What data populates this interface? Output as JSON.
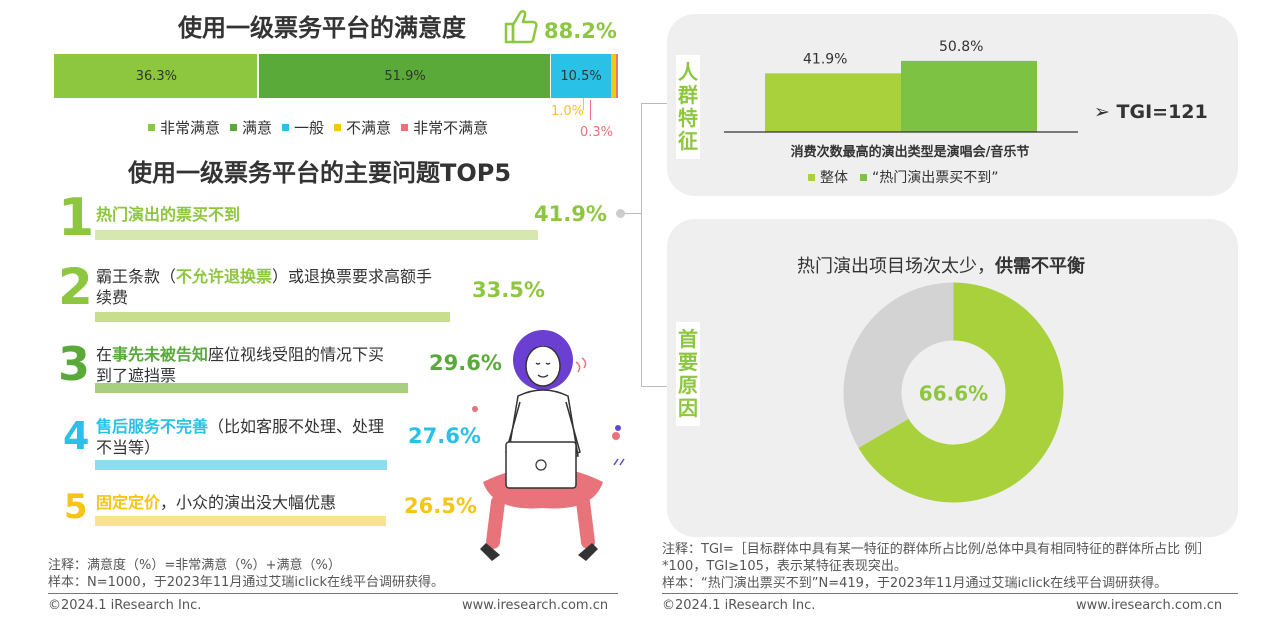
{
  "satisfaction": {
    "title": "使用一级票务平台的满意度",
    "total": "88.2%",
    "segments_text": {
      "very_satisfied": "36.3%",
      "satisfied": "51.9%",
      "neutral": "10.5%",
      "dissatisfied": "1.0%",
      "very_dissatisfied": "0.3%"
    },
    "legend": [
      "非常满意",
      "满意",
      "一般",
      "不满意",
      "非常不满意"
    ],
    "colors": [
      "#8dc63f",
      "#5aaa3a",
      "#29c1e6",
      "#f5c518",
      "#e8737a"
    ]
  },
  "top5": {
    "title": "使用一级票务平台的主要问题TOP5",
    "items": [
      {
        "rank": "1",
        "pre": "",
        "hl": "热门演出的票买不到",
        "post": "",
        "pct": "41.9%",
        "color": "#8dc63f"
      },
      {
        "rank": "2",
        "pre": "霸王条款（",
        "hl": "不允许退换票",
        "post": "）或退换票要求高额手续费",
        "pct": "33.5%",
        "color": "#8dc63f"
      },
      {
        "rank": "3",
        "pre": "在",
        "hl": "事先未被告知",
        "post": "座位视线受阻的情况下买到了遮挡票",
        "pct": "29.6%",
        "color": "#5aaa3a"
      },
      {
        "rank": "4",
        "pre": "",
        "hl": "售后服务不完善",
        "post": "（比如客服不处理、处理不当等）",
        "pct": "27.6%",
        "color": "#29c1e6"
      },
      {
        "rank": "5",
        "pre": "",
        "hl": "固定定价",
        "post": "，小众的演出没大幅优惠",
        "pct": "26.5%",
        "color": "#f5c518"
      }
    ]
  },
  "notes_left": {
    "line1": "注释：满意度（%）=非常满意（%）+满意（%）",
    "line2": "样本：N=1000，于2023年11月通过艾瑞iclick在线平台调研获得。",
    "copyright": "©2024.1 iResearch Inc.",
    "website": "www.iresearch.com.cn"
  },
  "crowd": {
    "side_title": "人群特征",
    "tgi": "➢ TGI=121",
    "legend": [
      "整体",
      "“热门演出票买不到”"
    ]
  },
  "reason": {
    "side_title": "首要原因",
    "title_plain": "热门演出项目场次太少，",
    "title_bold": "供需不平衡",
    "center": "66.6%"
  },
  "notes_right": {
    "line1": "注释：TGI=［目标群体中具有某一特征的群体所占比例/总体中具有相同特征的群体所占比 例］*100，TGI≥105，表示某特征表现突出。",
    "line2": "样本：“热门演出票买不到”N=419，于2023年11月通过艾瑞iclick在线平台调研获得。",
    "copyright": "©2024.1 iResearch Inc.",
    "website": "www.iresearch.com.cn"
  },
  "chart_data": [
    {
      "type": "bar",
      "title": "使用一级票务平台的满意度",
      "categories": [
        "使用一级票务平台的满意度"
      ],
      "series": [
        {
          "name": "非常满意",
          "values": [
            36.3
          ]
        },
        {
          "name": "满意",
          "values": [
            51.9
          ]
        },
        {
          "name": "一般",
          "values": [
            10.5
          ]
        },
        {
          "name": "不满意",
          "values": [
            1.0
          ]
        },
        {
          "name": "非常不满意",
          "values": [
            0.3
          ]
        }
      ],
      "stacked": true,
      "orientation": "horizontal",
      "legend": "bottom"
    },
    {
      "type": "bar",
      "title": "使用一级票务平台的主要问题TOP5",
      "categories": [
        "热门演出的票买不到",
        "霸王条款（不允许退换票）或退换票要求高额手续费",
        "在事先未被告知座位视线受阻的情况下买到了遮挡票",
        "售后服务不完善（比如客服不处理、处理不当等）",
        "固定定价，小众的演出没大幅优惠"
      ],
      "values": [
        41.9,
        33.5,
        29.6,
        27.6,
        26.5
      ],
      "orientation": "horizontal"
    },
    {
      "type": "bar",
      "xlabel": "消费次数最高的演出类型是演唱会/音乐节",
      "categories": [
        "消费次数最高的演出类型是演唱会/音乐节"
      ],
      "series": [
        {
          "name": "整体",
          "values": [
            41.9
          ]
        },
        {
          "name": "“热门演出票买不到”",
          "values": [
            50.8
          ]
        }
      ],
      "legend": "bottom"
    },
    {
      "type": "pie",
      "title": "热门演出项目场次太少，供需不平衡",
      "values": [
        66.6,
        33.4
      ],
      "center_label": "66.6%"
    }
  ]
}
